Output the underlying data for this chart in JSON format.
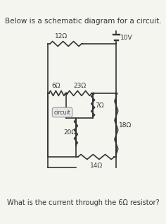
{
  "title_text": "Below is a schematic diagram for a circuit.",
  "question_text": "What is the current through the 6Ω resistor?",
  "background_color": "#f5f5f0",
  "line_color": "#333333",
  "resistor_labels": {
    "12ohm": "12Ω",
    "6ohm": "6Ω",
    "23ohm": "23Ω",
    "7ohm": "7Ω",
    "20ohm": "20Ω",
    "14ohm": "14Ω",
    "18ohm": "18Ω",
    "battery": "10V"
  },
  "font_size_title": 7.5,
  "font_size_question": 7.0,
  "font_size_labels": 6.5,
  "circuit_label": "circuit"
}
